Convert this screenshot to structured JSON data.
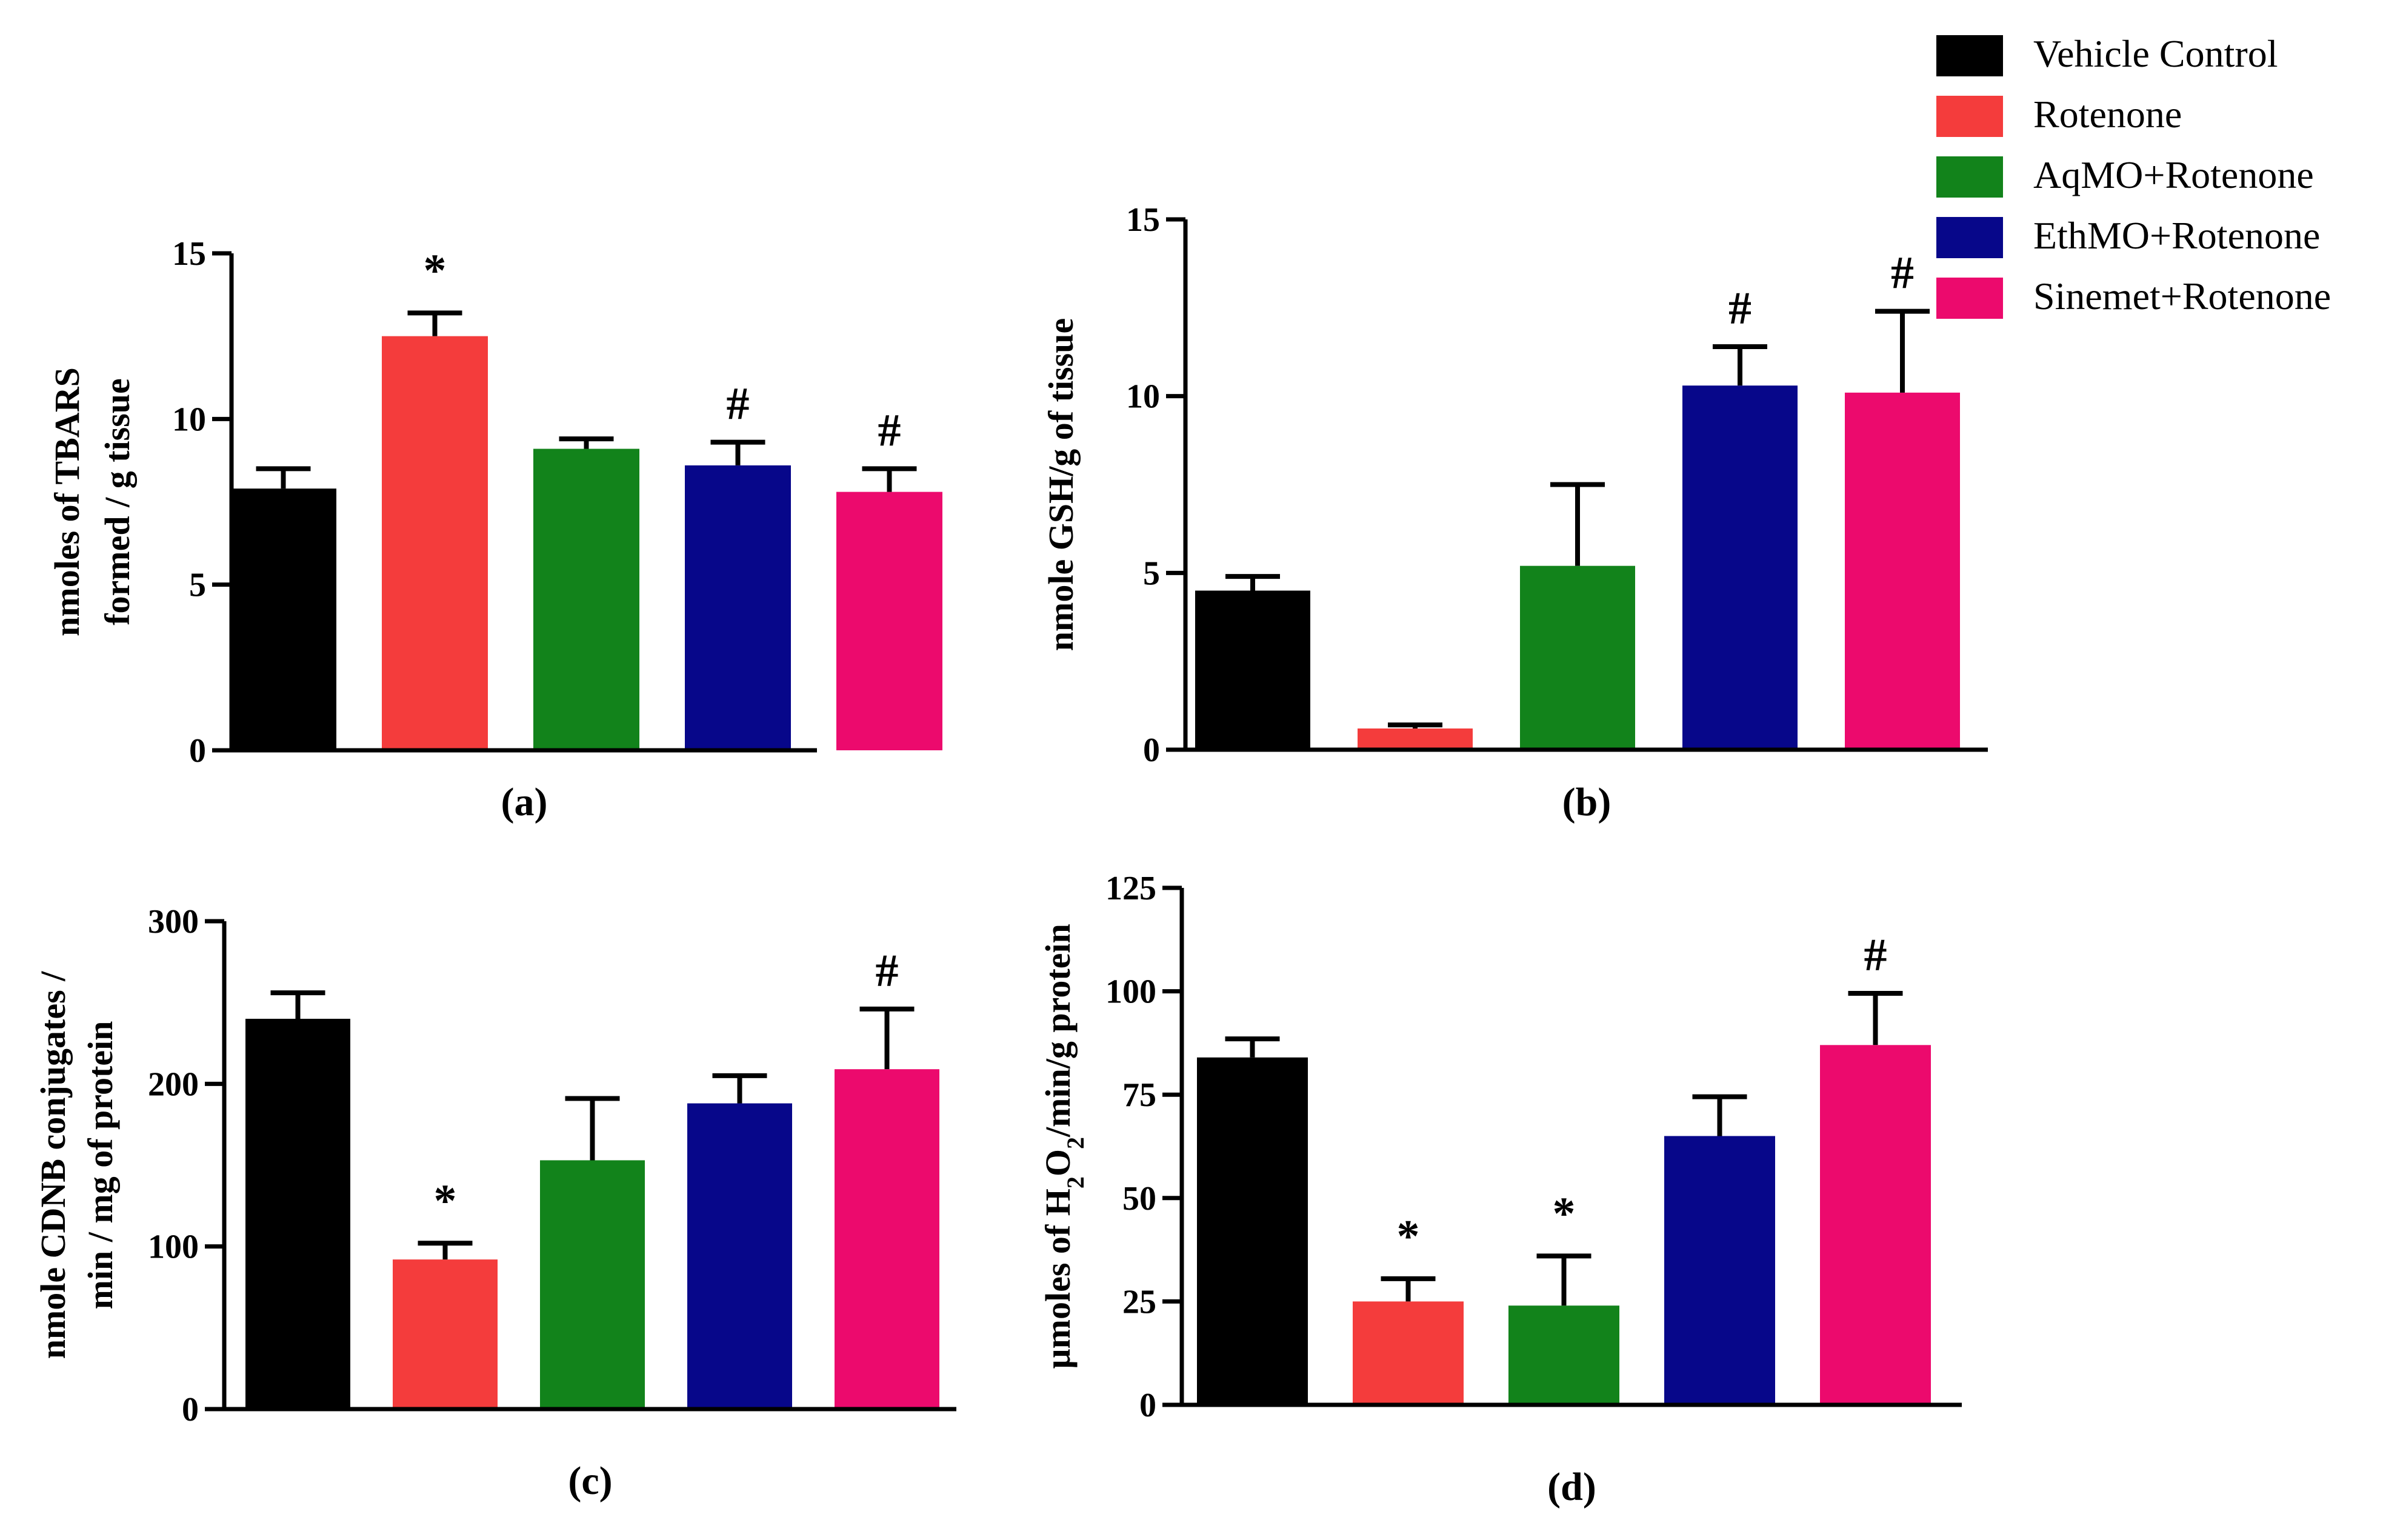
{
  "legend": {
    "entries": [
      {
        "label": "Vehicle Control",
        "color": "#000000"
      },
      {
        "label": "Rotenone",
        "color": "#f43c3c"
      },
      {
        "label": "AqMO+Rotenone",
        "color": "#12831b"
      },
      {
        "label": "EthMO+Rotenone",
        "color": "#07078a"
      },
      {
        "label": "Sinemet+Rotenone",
        "color": "#ec0a6d"
      }
    ]
  },
  "chart_data": [
    {
      "type": "bar",
      "panel_label": "(a)",
      "title": "",
      "xlabel": "",
      "ylabel_lines": [
        "nmoles of TBARS",
        "formed / g tissue"
      ],
      "ylim": [
        0,
        15
      ],
      "yticks": [
        0,
        5,
        10,
        15
      ],
      "ytick_labels": [
        "0",
        "5",
        "10",
        "15"
      ],
      "categories": [
        "Vehicle Control",
        "Rotenone",
        "AqMO+Rotenone",
        "EthMO+Rotenone",
        "Sinemet+Rotenone"
      ],
      "values": [
        7.9,
        12.5,
        9.1,
        8.6,
        7.8
      ],
      "errors": [
        0.6,
        0.7,
        0.3,
        0.7,
        0.7
      ],
      "markers": [
        "",
        "*",
        "",
        "#",
        "#"
      ]
    },
    {
      "type": "bar",
      "panel_label": "(b)",
      "title": "",
      "xlabel": "",
      "ylabel_lines": [
        "nmole GSH/g of tissue"
      ],
      "ylim": [
        0,
        15
      ],
      "yticks": [
        0,
        5,
        10,
        15
      ],
      "ytick_labels": [
        "0",
        "5",
        "10",
        "15"
      ],
      "categories": [
        "Vehicle Control",
        "Rotenone",
        "AqMO+Rotenone",
        "EthMO+Rotenone",
        "Sinemet+Rotenone"
      ],
      "values": [
        4.5,
        0.6,
        5.2,
        10.3,
        10.1
      ],
      "errors": [
        0.4,
        0.1,
        2.3,
        1.1,
        2.3
      ],
      "markers": [
        "",
        "",
        "",
        "#",
        "#"
      ]
    },
    {
      "type": "bar",
      "panel_label": "(c)",
      "title": "",
      "xlabel": "",
      "ylabel_lines": [
        "nmole CDNB conjugates /",
        "min / mg of protein"
      ],
      "ylim": [
        0,
        300
      ],
      "yticks": [
        0,
        100,
        200,
        300
      ],
      "ytick_labels": [
        "0",
        "100",
        "200",
        "300"
      ],
      "categories": [
        "Vehicle Control",
        "Rotenone",
        "AqMO+Rotenone",
        "EthMO+Rotenone",
        "Sinemet+Rotenone"
      ],
      "values": [
        240,
        92,
        153,
        188,
        209
      ],
      "errors": [
        16,
        10,
        38,
        17,
        37
      ],
      "markers": [
        "",
        "*",
        "",
        "",
        "#"
      ]
    },
    {
      "type": "bar",
      "panel_label": "(d)",
      "title": "",
      "xlabel": "",
      "ylabel_parts": [
        "µmoles of H",
        "2",
        "O",
        "2",
        "/min/g protein"
      ],
      "ylim": [
        0,
        125
      ],
      "yticks": [
        0,
        25,
        50,
        75,
        100,
        125
      ],
      "ytick_labels": [
        "0",
        "25",
        "50",
        "75",
        "100",
        "125"
      ],
      "categories": [
        "Vehicle Control",
        "Rotenone",
        "AqMO+Rotenone",
        "EthMO+Rotenone",
        "Sinemet+Rotenone"
      ],
      "values": [
        84,
        25,
        24,
        65,
        87
      ],
      "errors": [
        4.5,
        5.5,
        12,
        9.5,
        12.5
      ],
      "markers": [
        "",
        "*",
        "*",
        "",
        "#"
      ]
    }
  ]
}
